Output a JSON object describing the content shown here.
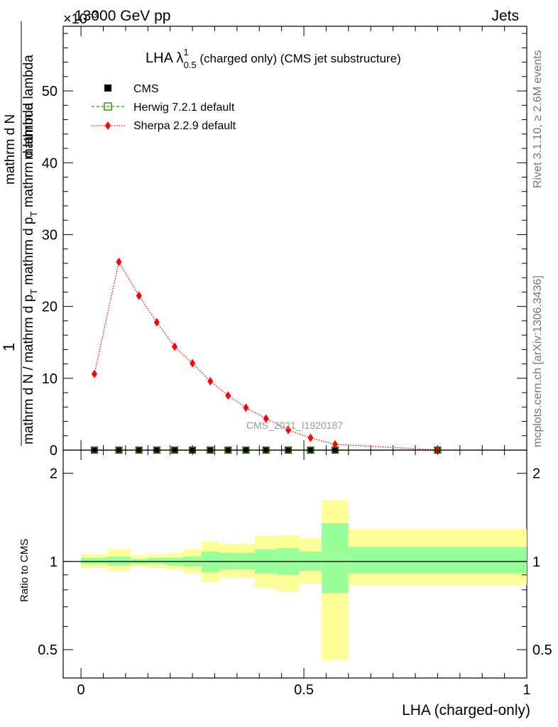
{
  "header": {
    "energy_label": "13000 GeV pp",
    "exponent_label": "×10",
    "exponent_power": "−3",
    "process_label": "Jets",
    "ref_code": "CMS_2021_I1920187"
  },
  "side_text": {
    "rivet": "Rivet 3.1.10, ≥ 2.6M events",
    "mcplots": "mcplots.cern.ch [arXiv:1306.3436]"
  },
  "colors": {
    "cms": "#000000",
    "herwig": "#3a9a00",
    "sherpa": "#ff0000",
    "band_inner": "#99ff99",
    "band_outer": "#ffff99"
  },
  "chart_data": [
    {
      "type": "line",
      "title": "LHA λ^1_0.5 (charged only) (CMS jet substructure)",
      "title_main": "LHA λ",
      "title_sup": "1",
      "title_sub": "0.5",
      "title_rest": " (charged only) (CMS jet substructure)",
      "ylabel_numerator": "1",
      "ylabel_fraction_top": "mathrm dN",
      "ylabel_fraction_bottom": "mathrm d N / mathrm d p_T mathrm d p_T mathrm d lambda",
      "ylabel_top_line": "mathrm d N / mathrm d p",
      "ylabel_mid_line": "mathrm d p",
      "ylabel_right_line": "mathrm d lambda",
      "ylabel_sub": "T",
      "ylabel_top_text": "mathrm d N",
      "y_scale_note": "×10^-3",
      "ylim": [
        0,
        59
      ],
      "xlim": [
        -0.04,
        1.0
      ],
      "yticks": [
        "0",
        "10",
        "20",
        "30",
        "40",
        "50"
      ],
      "legend_position": "top-left",
      "series": [
        {
          "name": "CMS",
          "x": [
            0.03,
            0.085,
            0.13,
            0.17,
            0.21,
            0.25,
            0.29,
            0.33,
            0.37,
            0.415,
            0.465,
            0.515,
            0.57,
            0.8
          ],
          "y": [
            0,
            0,
            0,
            0,
            0,
            0,
            0,
            0,
            0,
            0,
            0,
            0,
            0,
            0
          ]
        },
        {
          "name": "Herwig 7.2.1 default",
          "x": [
            0.03,
            0.085,
            0.13,
            0.17,
            0.21,
            0.25,
            0.29,
            0.33,
            0.37,
            0.415,
            0.465,
            0.515,
            0.57,
            0.8
          ],
          "y": [
            0,
            0,
            0,
            0,
            0,
            0,
            0,
            0,
            0,
            0,
            0,
            0,
            0,
            0
          ]
        },
        {
          "name": "Sherpa 2.2.9 default",
          "x": [
            0.03,
            0.085,
            0.13,
            0.17,
            0.21,
            0.25,
            0.29,
            0.33,
            0.37,
            0.415,
            0.465,
            0.515,
            0.57,
            0.8
          ],
          "y": [
            10.6,
            26.2,
            21.5,
            17.8,
            14.4,
            12.1,
            9.6,
            7.6,
            5.9,
            4.4,
            2.8,
            1.7,
            0.8,
            0.02
          ]
        }
      ]
    },
    {
      "type": "area",
      "ylabel": "Ratio to CMS",
      "xlabel": "LHA (charged-only)",
      "ylim": [
        0.4,
        2.4
      ],
      "xlim": [
        -0.04,
        1.0
      ],
      "xticks": [
        "0",
        "0.5",
        "1"
      ],
      "yticks": [
        "0.5",
        "1",
        "2"
      ],
      "bins": [
        {
          "lo": 0.0,
          "hi": 0.06,
          "inner": [
            0.98,
            1.03
          ],
          "outer": [
            0.95,
            1.06
          ]
        },
        {
          "lo": 0.06,
          "hi": 0.11,
          "inner": [
            0.97,
            1.04
          ],
          "outer": [
            0.93,
            1.1
          ]
        },
        {
          "lo": 0.11,
          "hi": 0.15,
          "inner": [
            0.98,
            1.02
          ],
          "outer": [
            0.96,
            1.05
          ]
        },
        {
          "lo": 0.15,
          "hi": 0.19,
          "inner": [
            0.98,
            1.03
          ],
          "outer": [
            0.95,
            1.06
          ]
        },
        {
          "lo": 0.19,
          "hi": 0.23,
          "inner": [
            0.97,
            1.03
          ],
          "outer": [
            0.94,
            1.07
          ]
        },
        {
          "lo": 0.23,
          "hi": 0.27,
          "inner": [
            0.96,
            1.04
          ],
          "outer": [
            0.91,
            1.1
          ]
        },
        {
          "lo": 0.27,
          "hi": 0.31,
          "inner": [
            0.92,
            1.08
          ],
          "outer": [
            0.85,
            1.17
          ]
        },
        {
          "lo": 0.31,
          "hi": 0.35,
          "inner": [
            0.94,
            1.07
          ],
          "outer": [
            0.88,
            1.15
          ]
        },
        {
          "lo": 0.35,
          "hi": 0.39,
          "inner": [
            0.94,
            1.07
          ],
          "outer": [
            0.88,
            1.15
          ]
        },
        {
          "lo": 0.39,
          "hi": 0.44,
          "inner": [
            0.91,
            1.1
          ],
          "outer": [
            0.81,
            1.22
          ]
        },
        {
          "lo": 0.44,
          "hi": 0.49,
          "inner": [
            0.9,
            1.11
          ],
          "outer": [
            0.79,
            1.23
          ]
        },
        {
          "lo": 0.49,
          "hi": 0.54,
          "inner": [
            0.93,
            1.08
          ],
          "outer": [
            0.84,
            1.2
          ]
        },
        {
          "lo": 0.54,
          "hi": 0.6,
          "inner": [
            0.78,
            1.35
          ],
          "outer": [
            0.46,
            1.62
          ]
        },
        {
          "lo": 0.6,
          "hi": 1.0,
          "inner": [
            0.91,
            1.12
          ],
          "outer": [
            0.83,
            1.29
          ]
        }
      ],
      "reference_line": 1
    }
  ]
}
